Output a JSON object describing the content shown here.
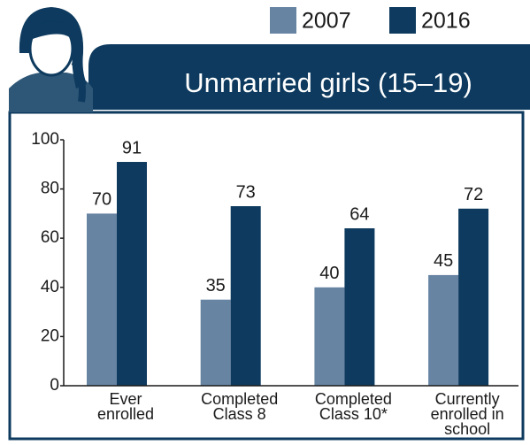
{
  "chart_data": {
    "type": "bar",
    "title": "Unmarried girls (15–19)",
    "categories": [
      [
        "Ever",
        "enrolled"
      ],
      [
        "Completed",
        "Class 8"
      ],
      [
        "Completed",
        "Class 10*"
      ],
      [
        "Currently",
        "enrolled in",
        "school"
      ]
    ],
    "series": [
      {
        "name": "2007",
        "color": "#6784a3",
        "values": [
          70,
          35,
          40,
          45
        ]
      },
      {
        "name": "2016",
        "color": "#0d3a5e",
        "values": [
          91,
          73,
          64,
          72
        ]
      }
    ],
    "ylim": [
      0,
      100
    ],
    "yticks": [
      0,
      20,
      40,
      60,
      80,
      100
    ]
  }
}
